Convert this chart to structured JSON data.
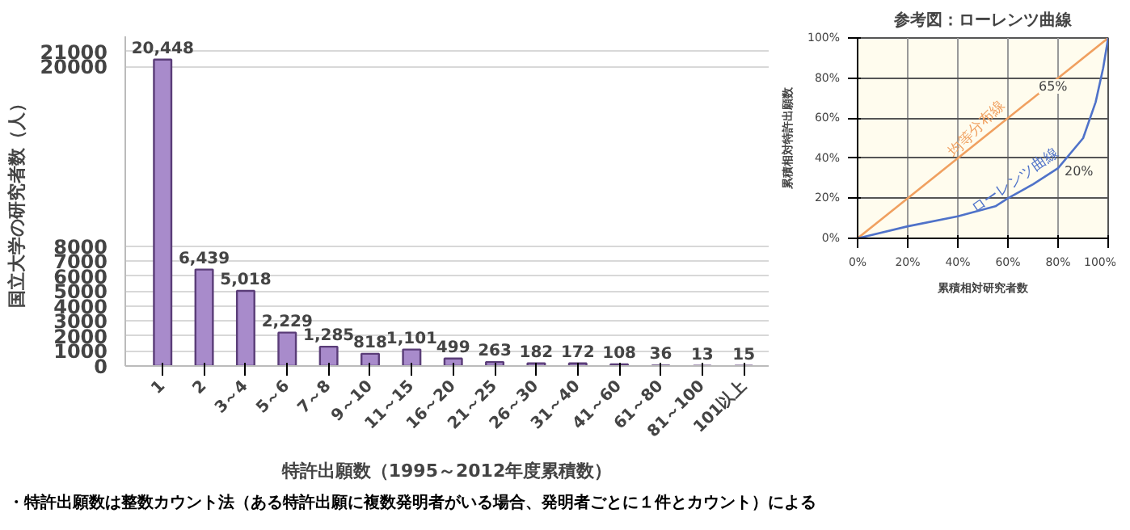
{
  "chart_data": [
    {
      "type": "bar",
      "xlabel": "特許出願数（1995～2012年度累積数）",
      "ylabel": "国立大学の研究者数（人）",
      "categories": [
        "1",
        "2",
        "3～4",
        "5～6",
        "7～8",
        "9～10",
        "11～15",
        "16～20",
        "21～25",
        "26～30",
        "31～40",
        "41～60",
        "61～80",
        "81～100",
        "101以上"
      ],
      "values": [
        20448,
        6439,
        5018,
        2229,
        1285,
        818,
        1101,
        499,
        263,
        182,
        172,
        108,
        36,
        13,
        15
      ],
      "value_labels": [
        "20,448",
        "6,439",
        "5,018",
        "2,229",
        "1,285",
        "818",
        "1,101",
        "499",
        "263",
        "182",
        "172",
        "108",
        "36",
        "13",
        "15"
      ],
      "color": "#a88bcb",
      "ylim": [
        0,
        22000
      ],
      "yticks": [
        0,
        1000,
        2000,
        3000,
        4000,
        5000,
        6000,
        7000,
        8000,
        20000,
        21000
      ],
      "grid": "y",
      "annotations": [
        "・特許出願数は整数カウント法（ある特許出願に複数発明者がいる場合、発明者ごとに１件とカウント）による"
      ]
    },
    {
      "type": "line",
      "title": "参考図：ローレンツ曲線",
      "xlabel": "累積相対研究者数",
      "ylabel": "累積相対特許出願数",
      "series": [
        {
          "name": "均等分布線",
          "color": "#f0a060",
          "x": [
            0,
            100
          ],
          "values": [
            0,
            100
          ]
        },
        {
          "name": "ローレンツ曲線",
          "color": "#4f72c9",
          "x": [
            0,
            20,
            40,
            55,
            60,
            70,
            80,
            90,
            95,
            98,
            100
          ],
          "values": [
            0,
            6,
            11,
            16,
            20,
            27,
            35,
            50,
            68,
            85,
            100
          ]
        }
      ],
      "xlim": [
        0,
        100
      ],
      "ylim": [
        0,
        100
      ],
      "xticks": [
        {
          "value": 0,
          "label": "0%"
        },
        {
          "value": 20,
          "label": "20%"
        },
        {
          "value": 40,
          "label": "40%"
        },
        {
          "value": 60,
          "label": "60%"
        },
        {
          "value": 80,
          "label": "80%"
        },
        {
          "value": 100,
          "label": "100%"
        }
      ],
      "yticks": [
        {
          "value": 0,
          "label": "0%"
        },
        {
          "value": 20,
          "label": "20%"
        },
        {
          "value": 40,
          "label": "40%"
        },
        {
          "value": 60,
          "label": "60%"
        },
        {
          "value": 80,
          "label": "80%"
        },
        {
          "value": 100,
          "label": "100%"
        }
      ],
      "grid": true,
      "annotations": [
        "65%",
        "20%"
      ]
    }
  ]
}
